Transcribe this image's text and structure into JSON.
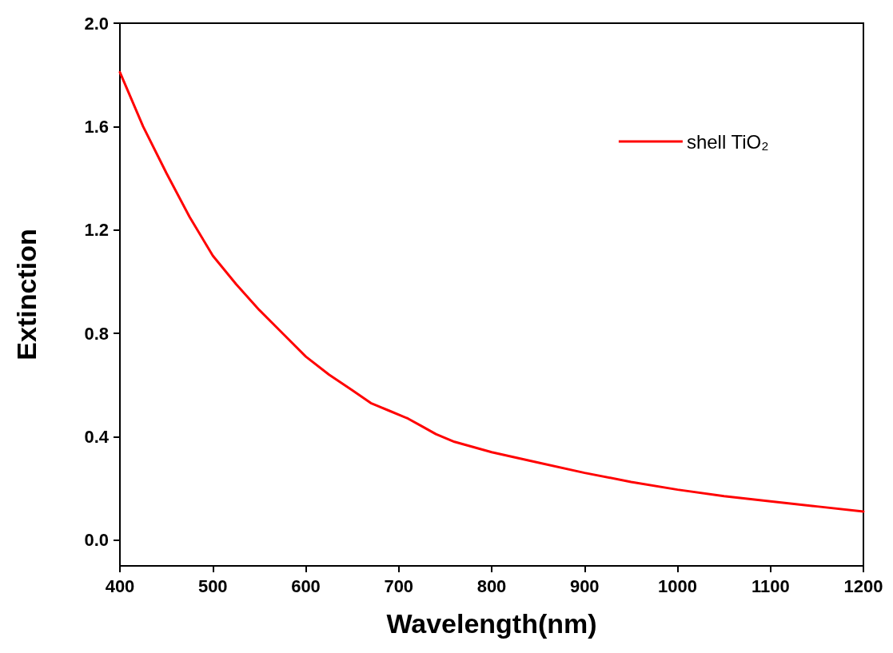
{
  "chart_data": {
    "type": "line",
    "xlabel": "Wavelength(nm)",
    "ylabel": "Extinction",
    "x": [
      400,
      425,
      450,
      475,
      500,
      525,
      550,
      575,
      600,
      625,
      650,
      670,
      690,
      710,
      725,
      740,
      760,
      780,
      800,
      850,
      900,
      950,
      1000,
      1050,
      1100,
      1150,
      1200
    ],
    "series": [
      {
        "name": "shell TiO₂",
        "color": "#ff0000",
        "values": [
          1.81,
          1.6,
          1.42,
          1.25,
          1.1,
          0.99,
          0.89,
          0.8,
          0.71,
          0.64,
          0.58,
          0.53,
          0.5,
          0.47,
          0.44,
          0.41,
          0.38,
          0.36,
          0.34,
          0.3,
          0.26,
          0.225,
          0.195,
          0.17,
          0.15,
          0.13,
          0.11
        ]
      }
    ],
    "xlim": [
      400,
      1200
    ],
    "xticks": [
      400,
      500,
      600,
      700,
      800,
      900,
      1000,
      1100,
      1200
    ],
    "ylim": [
      -0.1,
      2.0
    ],
    "yticks": [
      {
        "value": 0,
        "label": "0.0"
      },
      0.4,
      0.8,
      1.2,
      1.6,
      {
        "value": 2,
        "label": "2.0"
      }
    ],
    "legend": "top right",
    "grid": false,
    "marker": "none",
    "line_style": "solid"
  }
}
